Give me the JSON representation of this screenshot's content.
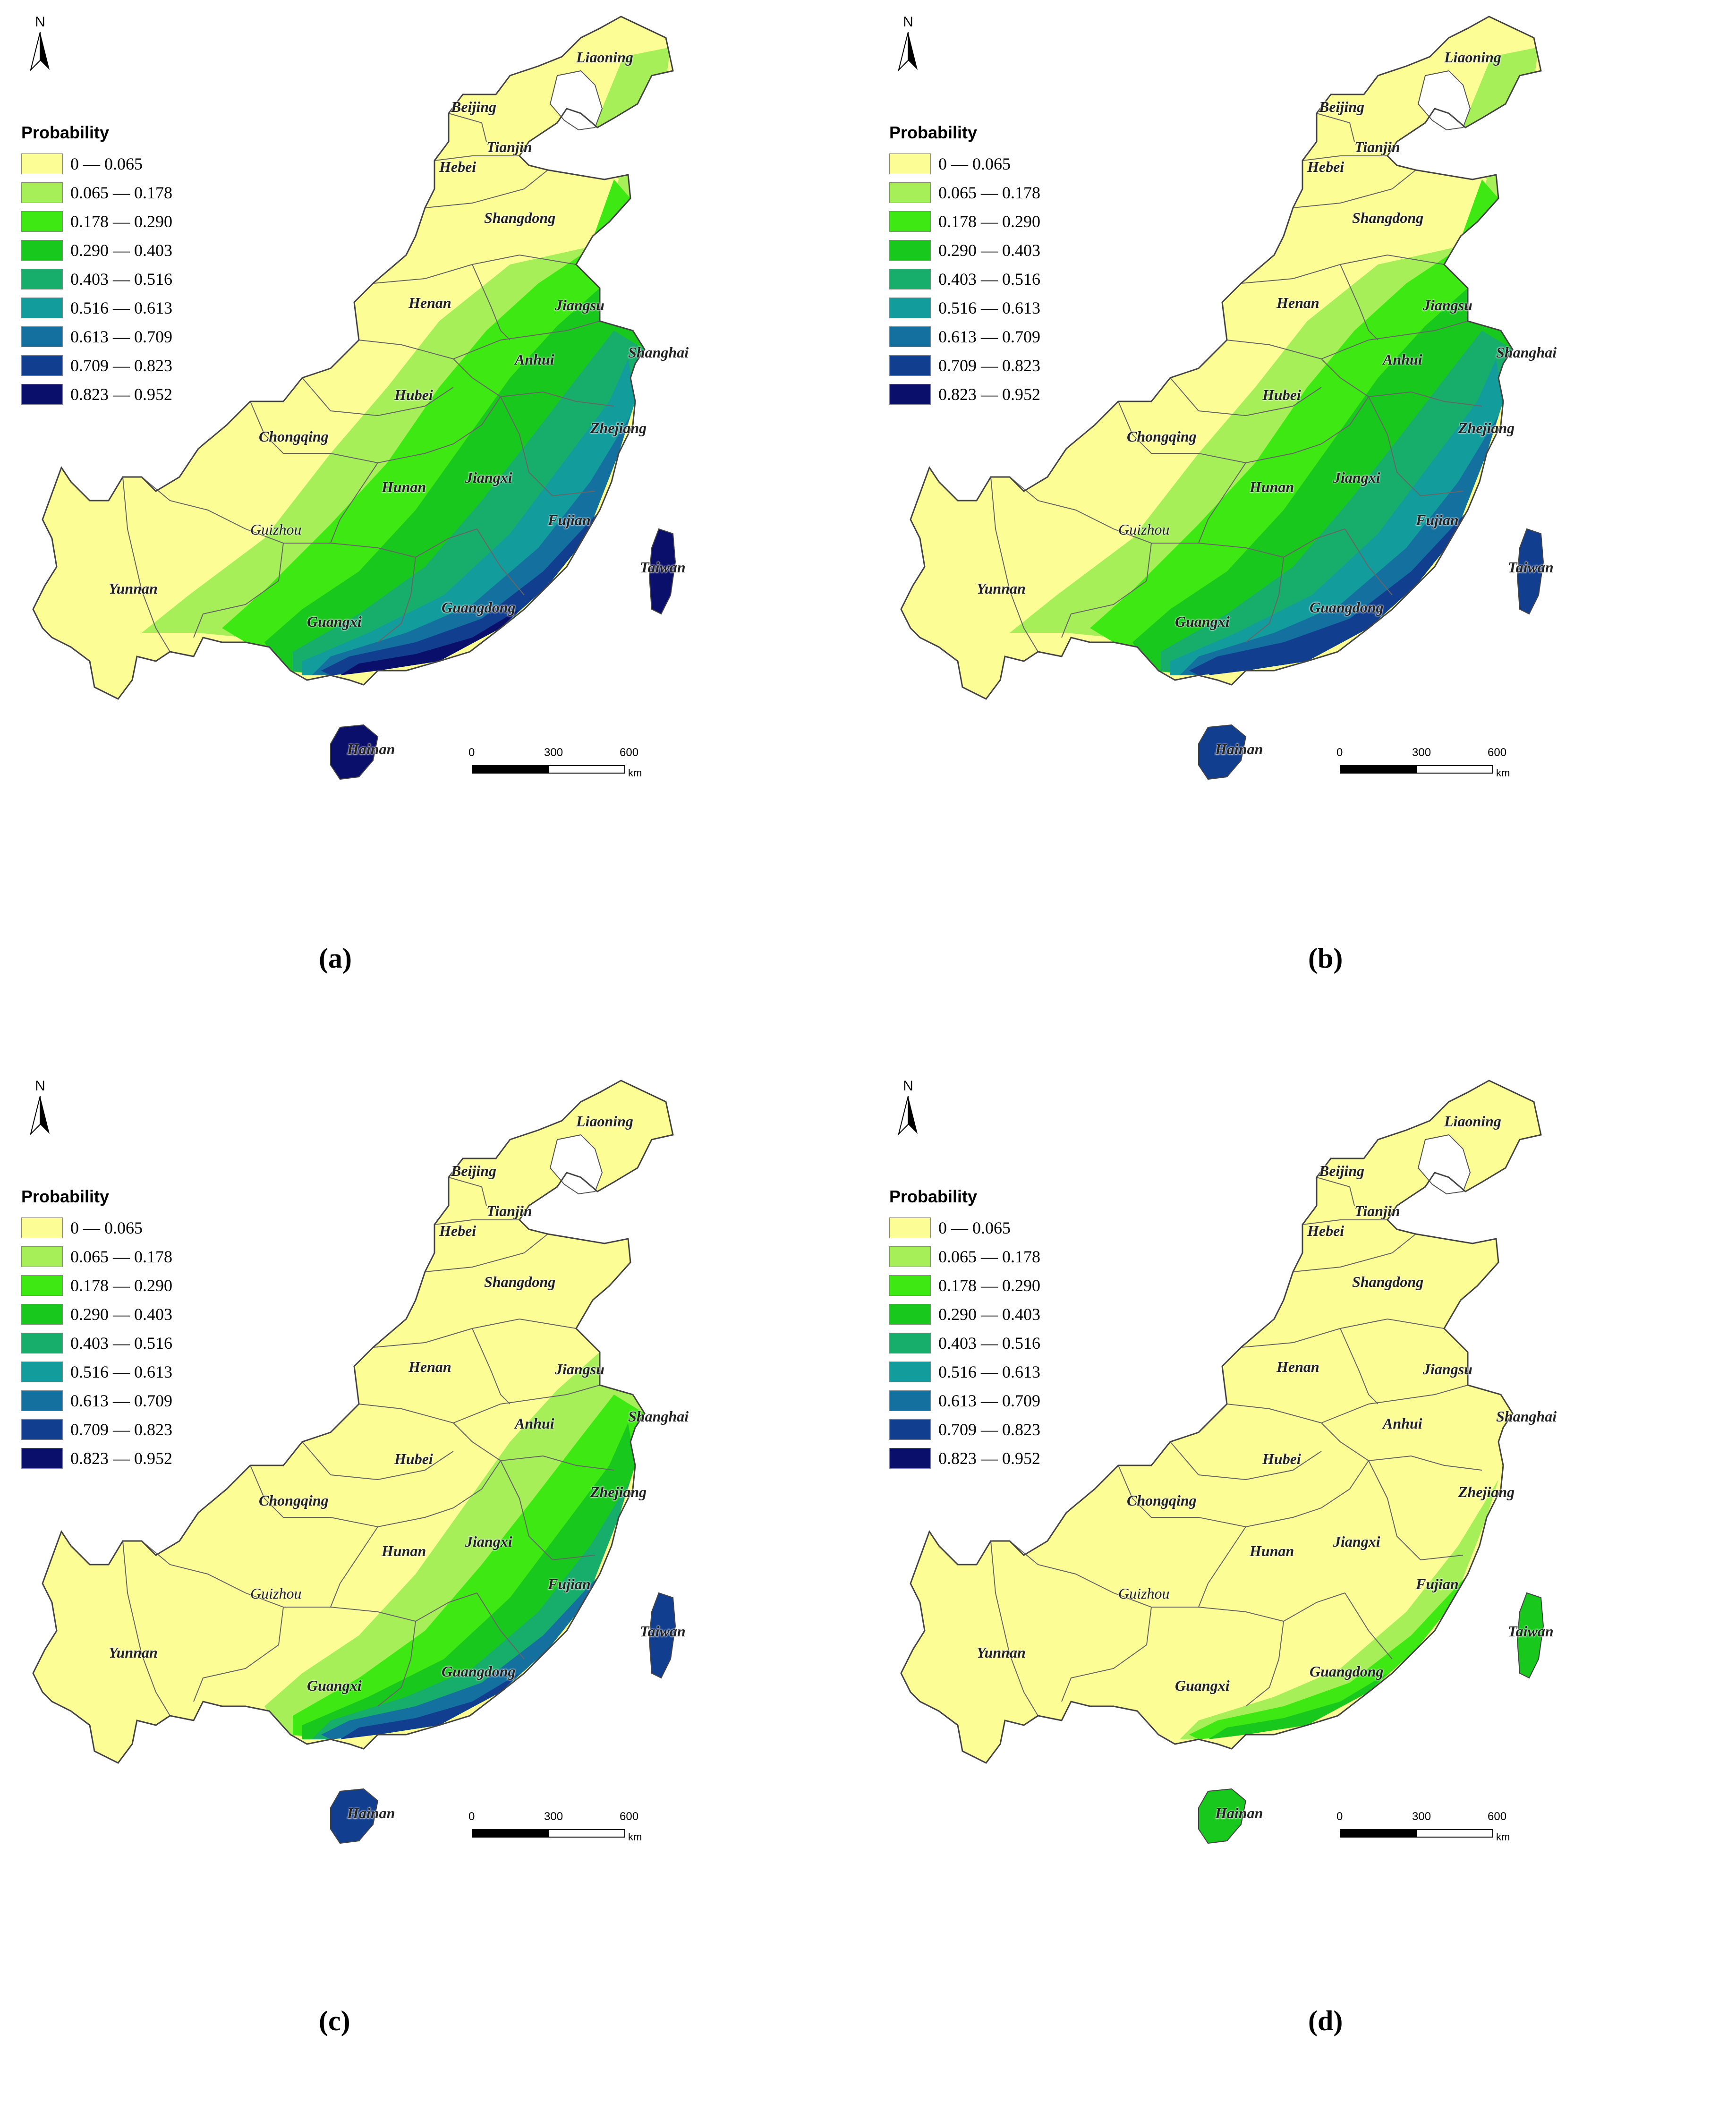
{
  "legend": {
    "title": "Probability",
    "classes": [
      {
        "range": "0 — 0.065",
        "color": "#fdfd96"
      },
      {
        "range": "0.065 — 0.178",
        "color": "#a6ef59"
      },
      {
        "range": "0.178 — 0.290",
        "color": "#3ee812"
      },
      {
        "range": "0.290 — 0.403",
        "color": "#18c81c"
      },
      {
        "range": "0.403 — 0.516",
        "color": "#16ae6a"
      },
      {
        "range": "0.516 — 0.613",
        "color": "#139c9c"
      },
      {
        "range": "0.613 — 0.709",
        "color": "#14709f"
      },
      {
        "range": "0.709 — 0.823",
        "color": "#123e8f"
      },
      {
        "range": "0.823 — 0.952",
        "color": "#0a0f6c"
      }
    ]
  },
  "north_arrow": {
    "label": "N"
  },
  "scale_bar": {
    "ticks": [
      "0",
      "300",
      "600"
    ],
    "unit": "km"
  },
  "provinces": {
    "liaoning": "Liaoning",
    "beijing": "Beijing",
    "tianjin": "Tianjin",
    "hebei": "Hebei",
    "shangdong": "Shangdong",
    "henan": "Henan",
    "jiangsu": "Jiangsu",
    "shanghai": "Shanghai",
    "anhui": "Anhui",
    "hubei": "Hubei",
    "zhejiang": "Zhejiang",
    "chongqing": "Chongqing",
    "hunan": "Hunan",
    "jiangxi": "Jiangxi",
    "fujian": "Fujian",
    "guizhou": "Guizhou",
    "taiwan": "Taiwan",
    "yunnan": "Yunnan",
    "guangxi": "Guangxi",
    "guangdong": "Guangdong",
    "hainan": "Hainan"
  },
  "panels": [
    {
      "caption": "(a)",
      "band_classes": [
        0,
        1,
        2,
        3,
        4,
        5,
        6,
        7,
        8
      ]
    },
    {
      "caption": "(b)",
      "band_classes": [
        0,
        1,
        2,
        3,
        4,
        5,
        6,
        7,
        7
      ]
    },
    {
      "caption": "(c)",
      "band_classes": [
        0,
        0,
        0,
        1,
        2,
        3,
        4,
        6,
        7
      ]
    },
    {
      "caption": "(d)",
      "band_classes": [
        0,
        0,
        0,
        0,
        0,
        0,
        1,
        2,
        3
      ]
    }
  ]
}
